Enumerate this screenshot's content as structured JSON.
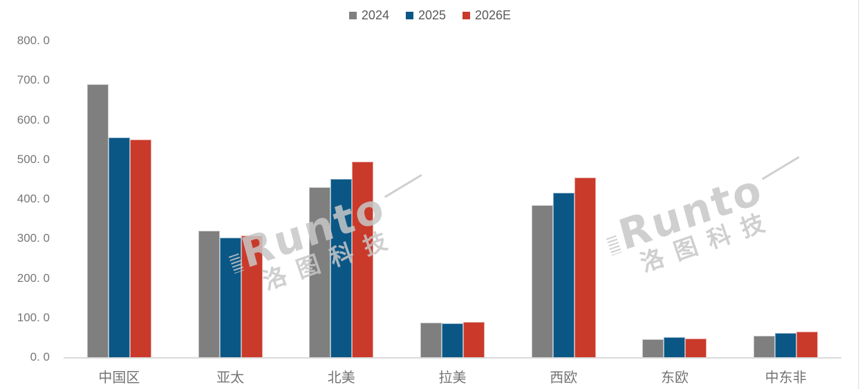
{
  "watermark": {
    "en": "Runto",
    "cn": "洛图科技"
  },
  "chart_data": {
    "type": "bar",
    "title": "",
    "xlabel": "",
    "ylabel": "",
    "categories": [
      "中国区",
      "亚太",
      "北美",
      "拉美",
      "西欧",
      "东欧",
      "中东非"
    ],
    "series": [
      {
        "name": "2024",
        "color": "#7F7F7F",
        "values": [
          690,
          320,
          430,
          88,
          385,
          45,
          55
        ]
      },
      {
        "name": "2025",
        "color": "#0A5786",
        "values": [
          555,
          302,
          450,
          85,
          415,
          50,
          61
        ]
      },
      {
        "name": "2026E",
        "color": "#C93A2B",
        "values": [
          550,
          308,
          494,
          90,
          454,
          48,
          65
        ]
      }
    ],
    "ylim": [
      0,
      800
    ],
    "ytick_step": 100,
    "ytick_labels": [
      "800. 0",
      "700. 0",
      "600. 0",
      "500. 0",
      "400. 0",
      "300. 0",
      "200. 0",
      "100. 0",
      "0. 0"
    ],
    "grid": false,
    "legend_position": "top-center",
    "text_colors": {
      "legend": "#595959",
      "ticks": "#767676",
      "categories": "#737373"
    },
    "axis_line_color": "#DADADA",
    "watermark_color": "#C7C7C7"
  }
}
